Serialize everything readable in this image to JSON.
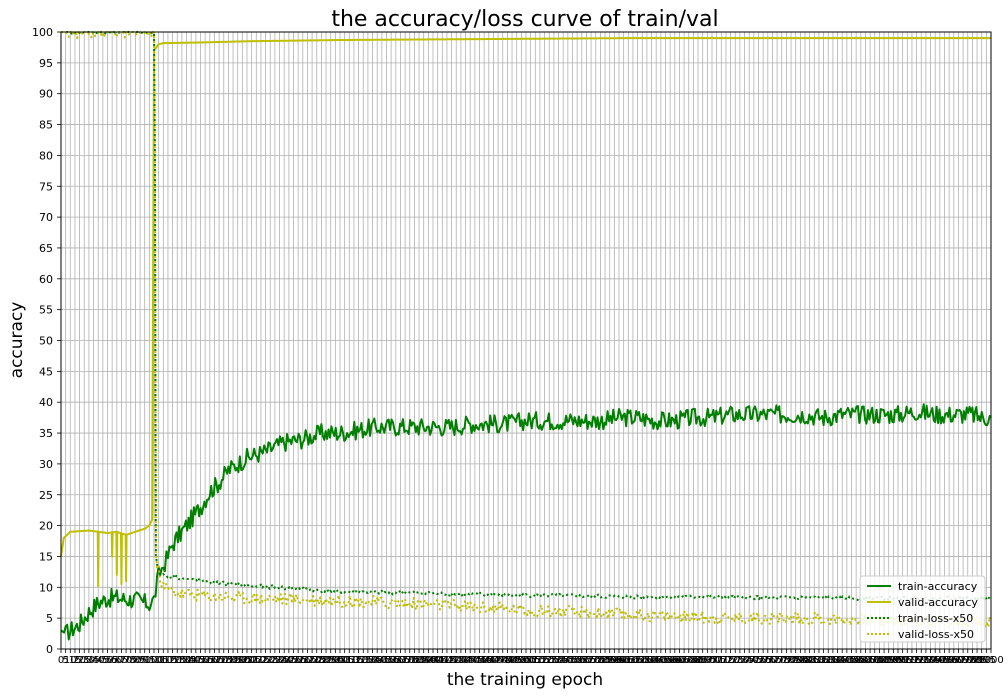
{
  "chart_data": {
    "type": "line",
    "title": "the accuracy/loss curve of train/val",
    "xlabel": "the training epoch",
    "ylabel": "accuracy",
    "xlim": [
      0,
      1000
    ],
    "ylim": [
      0,
      100
    ],
    "x_tick_step": 5,
    "y_ticks": [
      0,
      5,
      10,
      15,
      20,
      25,
      30,
      35,
      40,
      45,
      50,
      55,
      60,
      65,
      70,
      75,
      80,
      85,
      90,
      95,
      100
    ],
    "grid": true,
    "legend_position": "lower-right",
    "colors": {
      "train": "#008000",
      "valid": "#bfbf00"
    },
    "series": [
      {
        "name": "train-accuracy",
        "color": "#008000",
        "style": "solid",
        "x": [
          0,
          5,
          10,
          20,
          30,
          40,
          50,
          60,
          70,
          80,
          90,
          95,
          100,
          105,
          110,
          115,
          120,
          130,
          140,
          150,
          160,
          170,
          180,
          200,
          220,
          240,
          260,
          280,
          300,
          320,
          340,
          360,
          380,
          400,
          420,
          440,
          460,
          480,
          500,
          520,
          540,
          560,
          580,
          600,
          620,
          640,
          660,
          680,
          700,
          720,
          740,
          760,
          780,
          800,
          820,
          840,
          860,
          880,
          900,
          920,
          940,
          960,
          980,
          990,
          1000
        ],
        "y": [
          3,
          2.5,
          3,
          4,
          6,
          7.5,
          8.2,
          8.3,
          8,
          8,
          7.5,
          7.3,
          8,
          12,
          13.5,
          15,
          17,
          19,
          21,
          23,
          25.5,
          27,
          29,
          31,
          32,
          33.5,
          34,
          35,
          35,
          35.5,
          36,
          36,
          36,
          36,
          36,
          36.5,
          36.5,
          36.5,
          37,
          37,
          37,
          37,
          37,
          37.5,
          37.5,
          37,
          37,
          37.5,
          37.5,
          38,
          38,
          38,
          38,
          38,
          37.5,
          38,
          38,
          38,
          38,
          38.5,
          38,
          38,
          38,
          37.5,
          37.5
        ],
        "noise": 1.5
      },
      {
        "name": "valid-accuracy",
        "color": "#bfbf00",
        "style": "solid",
        "x": [
          0,
          3,
          10,
          30,
          40,
          50,
          60,
          70,
          80,
          90,
          95,
          98,
          100,
          105,
          110,
          150,
          200,
          300,
          400,
          500,
          600,
          700,
          800,
          900,
          1000
        ],
        "y": [
          15,
          18,
          19,
          19.2,
          19,
          18.8,
          19,
          18.5,
          19,
          19.5,
          20,
          21,
          97,
          98,
          98.2,
          98.3,
          98.5,
          98.7,
          98.8,
          98.9,
          99,
          99,
          99,
          99,
          99
        ],
        "dips": [
          [
            40,
            10.2
          ],
          [
            55,
            15
          ],
          [
            60,
            12
          ],
          [
            65,
            10.5
          ],
          [
            70,
            11
          ]
        ]
      },
      {
        "name": "train-loss-x50",
        "color": "#008000",
        "style": "dotted",
        "x": [
          0,
          2,
          4,
          100,
          101,
          102,
          105,
          110,
          130,
          150,
          200,
          250,
          300,
          400,
          500,
          600,
          700,
          800,
          900,
          1000
        ],
        "y": [
          100,
          100,
          100,
          100,
          80,
          15,
          12.2,
          12,
          11.5,
          11,
          10.3,
          9.8,
          9.3,
          9,
          8.7,
          8.5,
          8.4,
          8.3,
          8.2,
          8.2
        ],
        "noise": 0.3
      },
      {
        "name": "valid-loss-x50",
        "color": "#bfbf00",
        "style": "dotted",
        "x": [
          0,
          2,
          4,
          100,
          101,
          102,
          105,
          110,
          130,
          150,
          200,
          250,
          300,
          400,
          500,
          600,
          700,
          800,
          900,
          1000
        ],
        "y": [
          100,
          100,
          100,
          100,
          80,
          15,
          12.5,
          10,
          9,
          8.7,
          8.3,
          8.1,
          7.8,
          7.2,
          6.3,
          5.6,
          5.1,
          4.9,
          4.6,
          4.4
        ],
        "noise": 1.0
      }
    ]
  }
}
